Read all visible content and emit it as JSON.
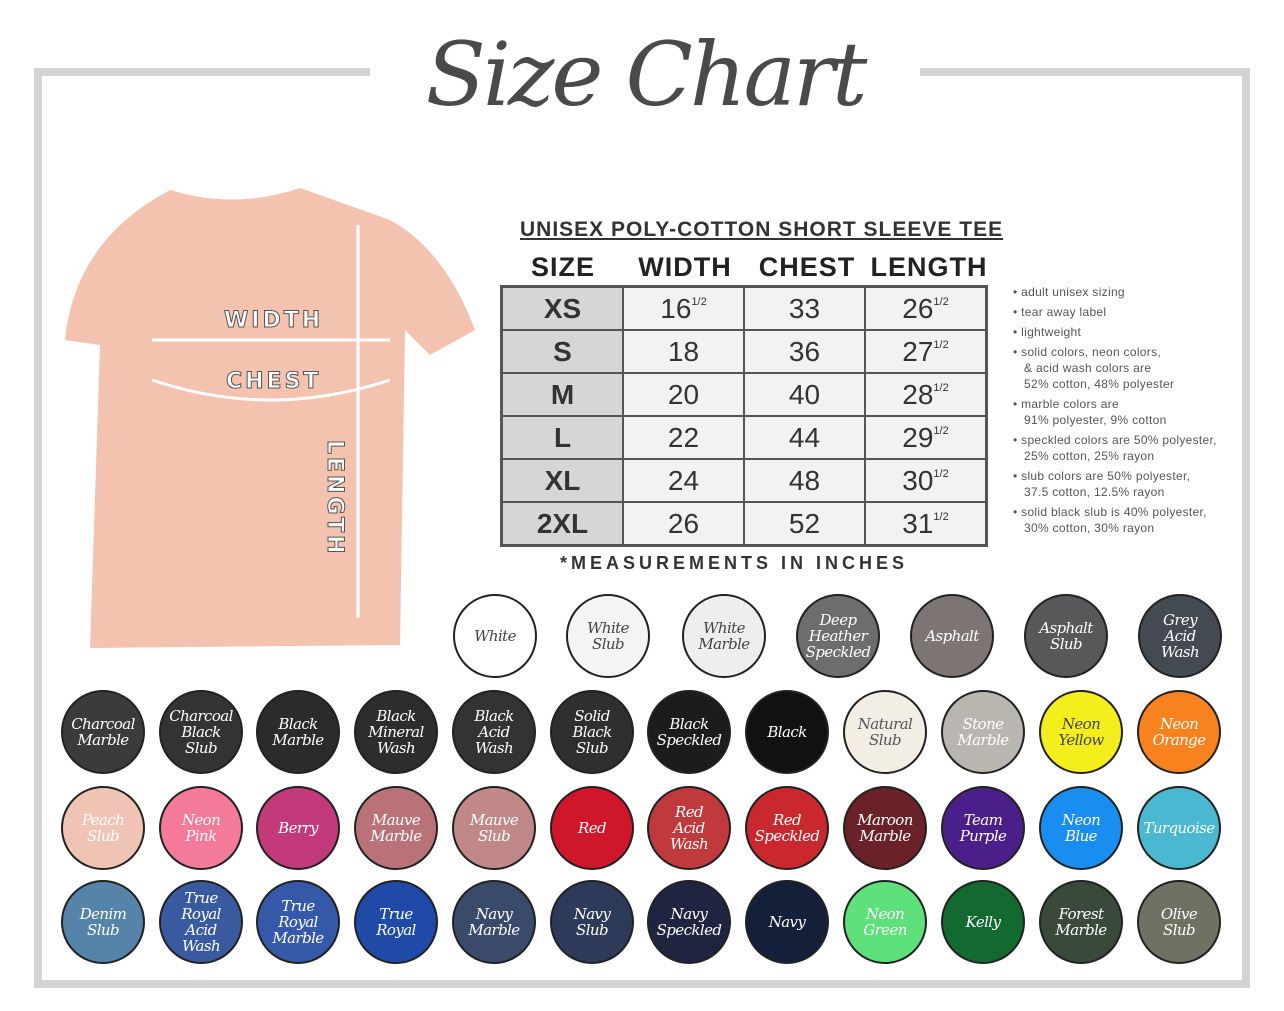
{
  "title": "Size Chart",
  "shirt": {
    "color": "#f3c3b0",
    "labels": {
      "width": "WIDTH",
      "chest": "CHEST",
      "length": "LENGTH"
    }
  },
  "table": {
    "title": "UNISEX POLY-COTTON SHORT SLEEVE TEE",
    "headers": [
      "SIZE",
      "WIDTH",
      "CHEST",
      "LENGTH"
    ],
    "rows": [
      {
        "size": "XS",
        "width": "16",
        "width_frac": "1/2",
        "chest": "33",
        "length": "26",
        "length_frac": "1/2"
      },
      {
        "size": "S",
        "width": "18",
        "width_frac": "",
        "chest": "36",
        "length": "27",
        "length_frac": "1/2"
      },
      {
        "size": "M",
        "width": "20",
        "width_frac": "",
        "chest": "40",
        "length": "28",
        "length_frac": "1/2"
      },
      {
        "size": "L",
        "width": "22",
        "width_frac": "",
        "chest": "44",
        "length": "29",
        "length_frac": "1/2"
      },
      {
        "size": "XL",
        "width": "24",
        "width_frac": "",
        "chest": "48",
        "length": "30",
        "length_frac": "1/2"
      },
      {
        "size": "2XL",
        "width": "26",
        "width_frac": "",
        "chest": "52",
        "length": "31",
        "length_frac": "1/2"
      }
    ],
    "note": "*MEASUREMENTS IN INCHES"
  },
  "bullets": [
    "adult unisex sizing",
    "tear away label",
    "lightweight",
    "solid colors, neon colors,\n& acid wash colors are\n52% cotton, 48% polyester",
    "marble colors are\n91% polyester, 9% cotton",
    "speckled colors are 50% polyester,\n25% cotton, 25% rayon",
    "slub colors are 50% polyester,\n37.5 cotton, 12.5% rayon",
    "solid black slub is 40% polyester,\n30% cotton, 30% rayon"
  ],
  "swatches": [
    [
      {
        "name": "White",
        "color": "#ffffff",
        "text": "#444"
      },
      {
        "name": "White\nSlub",
        "color": "#f4f4f4",
        "text": "#444"
      },
      {
        "name": "White\nMarble",
        "color": "#eeeeee",
        "text": "#444"
      },
      {
        "name": "Deep\nHeather\nSpeckled",
        "color": "#6d6d6d",
        "text": "#fff"
      },
      {
        "name": "Asphalt",
        "color": "#7d7474",
        "text": "#fff"
      },
      {
        "name": "Asphalt\nSlub",
        "color": "#58585a",
        "text": "#fff"
      },
      {
        "name": "Grey\nAcid\nWash",
        "color": "#444a52",
        "text": "#fff"
      }
    ],
    [
      {
        "name": "Charcoal\nMarble",
        "color": "#3b3b3b",
        "text": "#fff"
      },
      {
        "name": "Charcoal\nBlack\nSlub",
        "color": "#333333",
        "text": "#fff"
      },
      {
        "name": "Black\nMarble",
        "color": "#2b2b2b",
        "text": "#fff"
      },
      {
        "name": "Black\nMineral\nWash",
        "color": "#2d2d2d",
        "text": "#fff"
      },
      {
        "name": "Black\nAcid\nWash",
        "color": "#333333",
        "text": "#fff"
      },
      {
        "name": "Solid\nBlack\nSlub",
        "color": "#2f2f2f",
        "text": "#fff"
      },
      {
        "name": "Black\nSpeckled",
        "color": "#1c1c1c",
        "text": "#fff"
      },
      {
        "name": "Black",
        "color": "#111111",
        "text": "#fff"
      },
      {
        "name": "Natural\nSlub",
        "color": "#f2eee4",
        "text": "#555"
      },
      {
        "name": "Stone\nMarble",
        "color": "#b8b6ae",
        "text": "#fff"
      },
      {
        "name": "Neon\nYellow",
        "color": "#f4ee1c",
        "text": "#444"
      },
      {
        "name": "Neon\nOrange",
        "color": "#f7821e",
        "text": "#fff"
      }
    ],
    [
      {
        "name": "Peach\nSlub",
        "color": "#f0c4b4",
        "text": "#fff"
      },
      {
        "name": "Neon\nPink",
        "color": "#f47a9a",
        "text": "#fff"
      },
      {
        "name": "Berry",
        "color": "#c23a7a",
        "text": "#fff"
      },
      {
        "name": "Mauve\nMarble",
        "color": "#b87278",
        "text": "#fff"
      },
      {
        "name": "Mauve\nSlub",
        "color": "#c18888",
        "text": "#fff"
      },
      {
        "name": "Red",
        "color": "#d0162a",
        "text": "#fff"
      },
      {
        "name": "Red\nAcid\nWash",
        "color": "#c0393c",
        "text": "#fff"
      },
      {
        "name": "Red\nSpeckled",
        "color": "#c8282e",
        "text": "#fff"
      },
      {
        "name": "Maroon\nMarble",
        "color": "#6a2228",
        "text": "#fff"
      },
      {
        "name": "Team\nPurple",
        "color": "#4a1f8a",
        "text": "#fff"
      },
      {
        "name": "Neon\nBlue",
        "color": "#1a8ef0",
        "text": "#fff"
      },
      {
        "name": "Turquoise",
        "color": "#4ab8d0",
        "text": "#fff"
      }
    ],
    [
      {
        "name": "Denim\nSlub",
        "color": "#5584a8",
        "text": "#fff"
      },
      {
        "name": "True\nRoyal\nAcid\nWash",
        "color": "#3a5aa0",
        "text": "#fff"
      },
      {
        "name": "True\nRoyal\nMarble",
        "color": "#3558a8",
        "text": "#fff"
      },
      {
        "name": "True\nRoyal",
        "color": "#1f4aa8",
        "text": "#fff"
      },
      {
        "name": "Navy\nMarble",
        "color": "#3a4a6a",
        "text": "#fff"
      },
      {
        "name": "Navy\nSlub",
        "color": "#2e3a5a",
        "text": "#fff"
      },
      {
        "name": "Navy\nSpeckled",
        "color": "#1f2540",
        "text": "#fff"
      },
      {
        "name": "Navy",
        "color": "#14203a",
        "text": "#fff"
      },
      {
        "name": "Neon\nGreen",
        "color": "#5ee07a",
        "text": "#fff"
      },
      {
        "name": "Kelly",
        "color": "#136a30",
        "text": "#fff"
      },
      {
        "name": "Forest\nMarble",
        "color": "#3a4a3a",
        "text": "#fff"
      },
      {
        "name": "Olive\nSlub",
        "color": "#6f7262",
        "text": "#fff"
      }
    ]
  ]
}
